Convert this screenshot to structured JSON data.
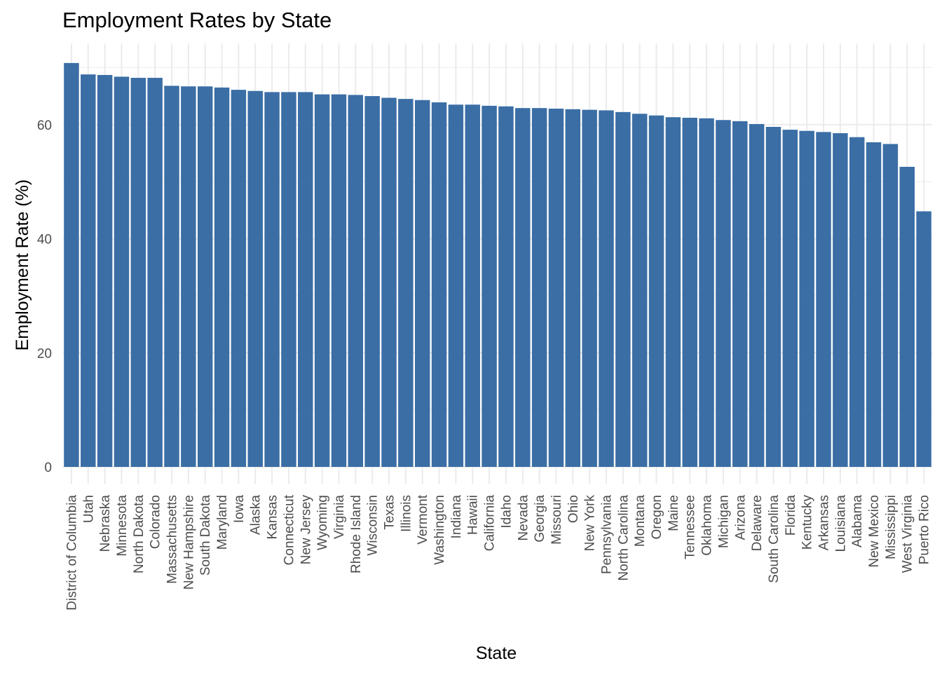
{
  "chart_data": {
    "type": "bar",
    "title": "Employment Rates by State",
    "xlabel": "State",
    "ylabel": "Employment Rate (%)",
    "ylim": [
      0,
      72
    ],
    "yticks": [
      0,
      20,
      40,
      60
    ],
    "grid": true,
    "bar_color": "#3a6ea5",
    "categories": [
      "District of Columbia",
      "Utah",
      "Nebraska",
      "Minnesota",
      "North Dakota",
      "Colorado",
      "Massachusetts",
      "New Hampshire",
      "South Dakota",
      "Maryland",
      "Iowa",
      "Alaska",
      "Kansas",
      "Connecticut",
      "New Jersey",
      "Wyoming",
      "Virginia",
      "Rhode Island",
      "Wisconsin",
      "Texas",
      "Illinois",
      "Vermont",
      "Washington",
      "Indiana",
      "Hawaii",
      "California",
      "Idaho",
      "Nevada",
      "Georgia",
      "Missouri",
      "Ohio",
      "New York",
      "Pennsylvania",
      "North Carolina",
      "Montana",
      "Oregon",
      "Maine",
      "Tennessee",
      "Oklahoma",
      "Michigan",
      "Arizona",
      "Delaware",
      "South Carolina",
      "Florida",
      "Kentucky",
      "Arkansas",
      "Louisiana",
      "Alabama",
      "New Mexico",
      "Mississippi",
      "West Virginia",
      "Puerto Rico"
    ],
    "values": [
      70.8,
      68.8,
      68.7,
      68.4,
      68.2,
      68.2,
      66.8,
      66.7,
      66.7,
      66.5,
      66.1,
      65.9,
      65.7,
      65.7,
      65.7,
      65.3,
      65.3,
      65.2,
      65.0,
      64.7,
      64.5,
      64.3,
      63.9,
      63.5,
      63.5,
      63.3,
      63.2,
      62.9,
      62.9,
      62.8,
      62.7,
      62.6,
      62.5,
      62.2,
      61.9,
      61.6,
      61.3,
      61.2,
      61.1,
      60.8,
      60.6,
      60.1,
      59.6,
      59.1,
      58.9,
      58.7,
      58.5,
      57.8,
      56.9,
      56.6,
      52.6,
      44.8
    ]
  }
}
